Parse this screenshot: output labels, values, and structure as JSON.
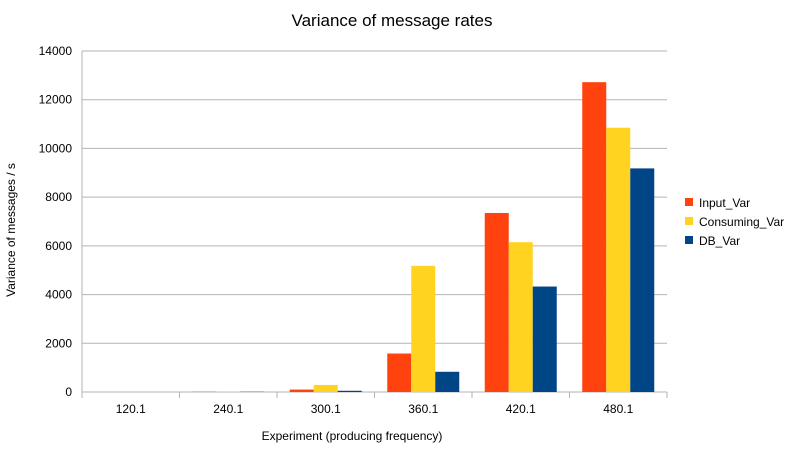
{
  "chart_data": {
    "type": "bar",
    "title": "Variance of message rates",
    "xlabel": "Experiment (producing frequency)",
    "ylabel": "Variance of messages / s",
    "categories": [
      "120.1",
      "240.1",
      "300.1",
      "360.1",
      "420.1",
      "480.1"
    ],
    "ylim": [
      0,
      14000
    ],
    "yticks": [
      0,
      2000,
      4000,
      6000,
      8000,
      10000,
      12000,
      14000
    ],
    "grid": "horizontal",
    "legend_position": "right",
    "series": [
      {
        "name": "Input_Var",
        "color": "#ff420e",
        "values": [
          0,
          10,
          100,
          1580,
          7350,
          12720
        ]
      },
      {
        "name": "Consuming_Var",
        "color": "#ffd320",
        "values": [
          0,
          10,
          290,
          5180,
          6150,
          10850
        ]
      },
      {
        "name": "DB_Var",
        "color": "#004586",
        "values": [
          0,
          10,
          50,
          830,
          4330,
          9180
        ]
      }
    ]
  }
}
